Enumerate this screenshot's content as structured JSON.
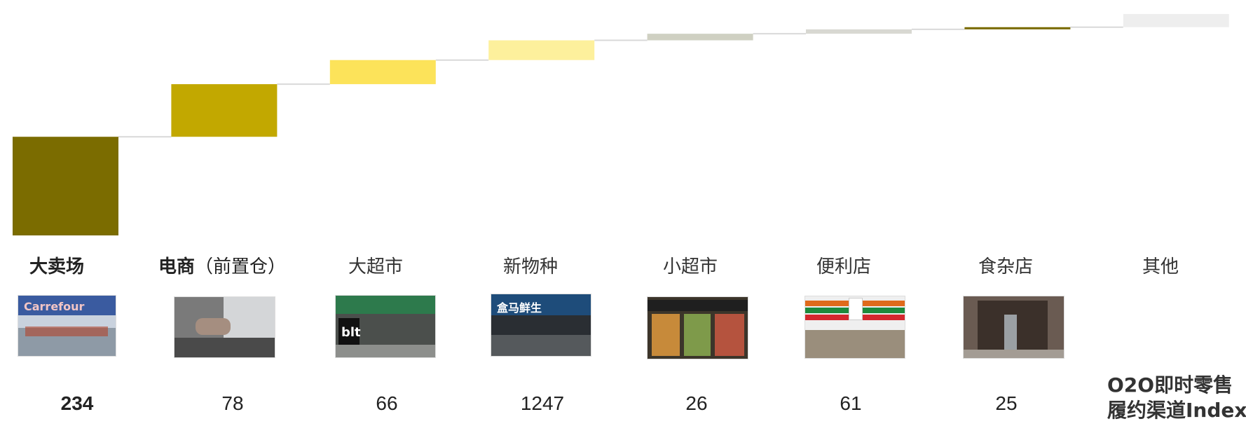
{
  "chart_data": {
    "type": "bar",
    "subtype": "waterfall",
    "categories": [
      "大卖场",
      "电商",
      "大超市",
      "新物种",
      "小超市",
      "便利店",
      "食杂店",
      "其他"
    ],
    "category_sub_labels": [
      "",
      "（前置仓）",
      "",
      "",
      "",
      "",
      "",
      ""
    ],
    "bold_categories": [
      "大卖场",
      "电商"
    ],
    "values": [
      45,
      24,
      11,
      9,
      3,
      2,
      1,
      6
    ],
    "colors": [
      "#7b6c00",
      "#c2a800",
      "#fce35a",
      "#fdf09c",
      "#cfd0c2",
      "#d8d8d2",
      "#7b6c00",
      "#eeeeee"
    ],
    "index_values": [
      "234",
      "78",
      "66",
      "1247",
      "26",
      "61",
      "25",
      ""
    ],
    "index_title_lines": [
      "O2O即时零售",
      "履约渠道Index"
    ],
    "image_icons": [
      "carrefour-store-icon",
      "laptop-icon",
      "bhg-store-icon",
      "hema-store-icon",
      "shelves-icon",
      "seven-eleven-icon",
      "grocery-shop-icon",
      ""
    ]
  }
}
